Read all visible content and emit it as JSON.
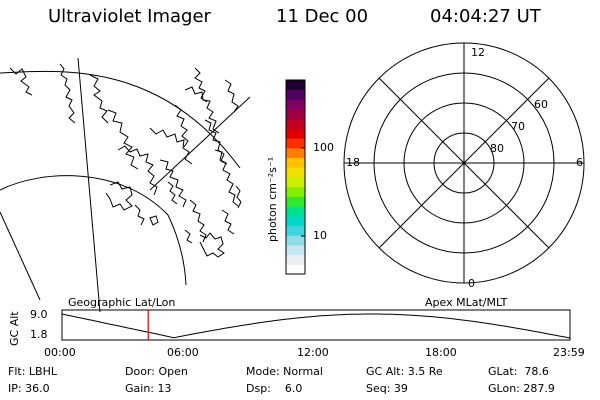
{
  "header": {
    "title": "Ultraviolet Imager",
    "date": "11 Dec 00",
    "time": "04:04:27 UT"
  },
  "colorbar": {
    "unit_label": "photon cm⁻²s⁻¹",
    "tick_100": "100",
    "tick_10": "10",
    "colors": [
      "#ffffff",
      "#e8eef2",
      "#c8e6f0",
      "#90dce8",
      "#40d4e0",
      "#00d8c8",
      "#00e090",
      "#30e830",
      "#80f000",
      "#c8f000",
      "#f0e000",
      "#ffc000",
      "#ff8000",
      "#ff3000",
      "#e00000",
      "#c00020",
      "#a00040",
      "#800060",
      "#500060",
      "#200030"
    ]
  },
  "polar": {
    "mlt_12": "12",
    "mlt_18": "18",
    "mlt_6": "6",
    "mlt_0": "0",
    "lat_60": "60",
    "lat_70": "70",
    "lat_80": "80"
  },
  "timeline": {
    "left_label": "Geographic Lat/Lon",
    "right_label": "Apex MLat/MLT",
    "axis_label": "GC Alt",
    "y_top": "9.0",
    "y_bottom": "1.8",
    "x_ticks": [
      "00:00",
      "06:00",
      "12:00",
      "18:00",
      "23:59"
    ],
    "marker_time": "04:04:27"
  },
  "status": {
    "flt": "Flt: LBHL",
    "door": "Door: Open",
    "mode": "Mode: Normal",
    "gc_alt": "GC Alt: 3.5 Re",
    "glat": "GLat:  78.6",
    "ip": "IP: 36.0",
    "gain": "Gain: 13",
    "dsp": "Dsp:    6.0",
    "seq": "Seq: 39",
    "glon": "GLon: 287.9"
  }
}
